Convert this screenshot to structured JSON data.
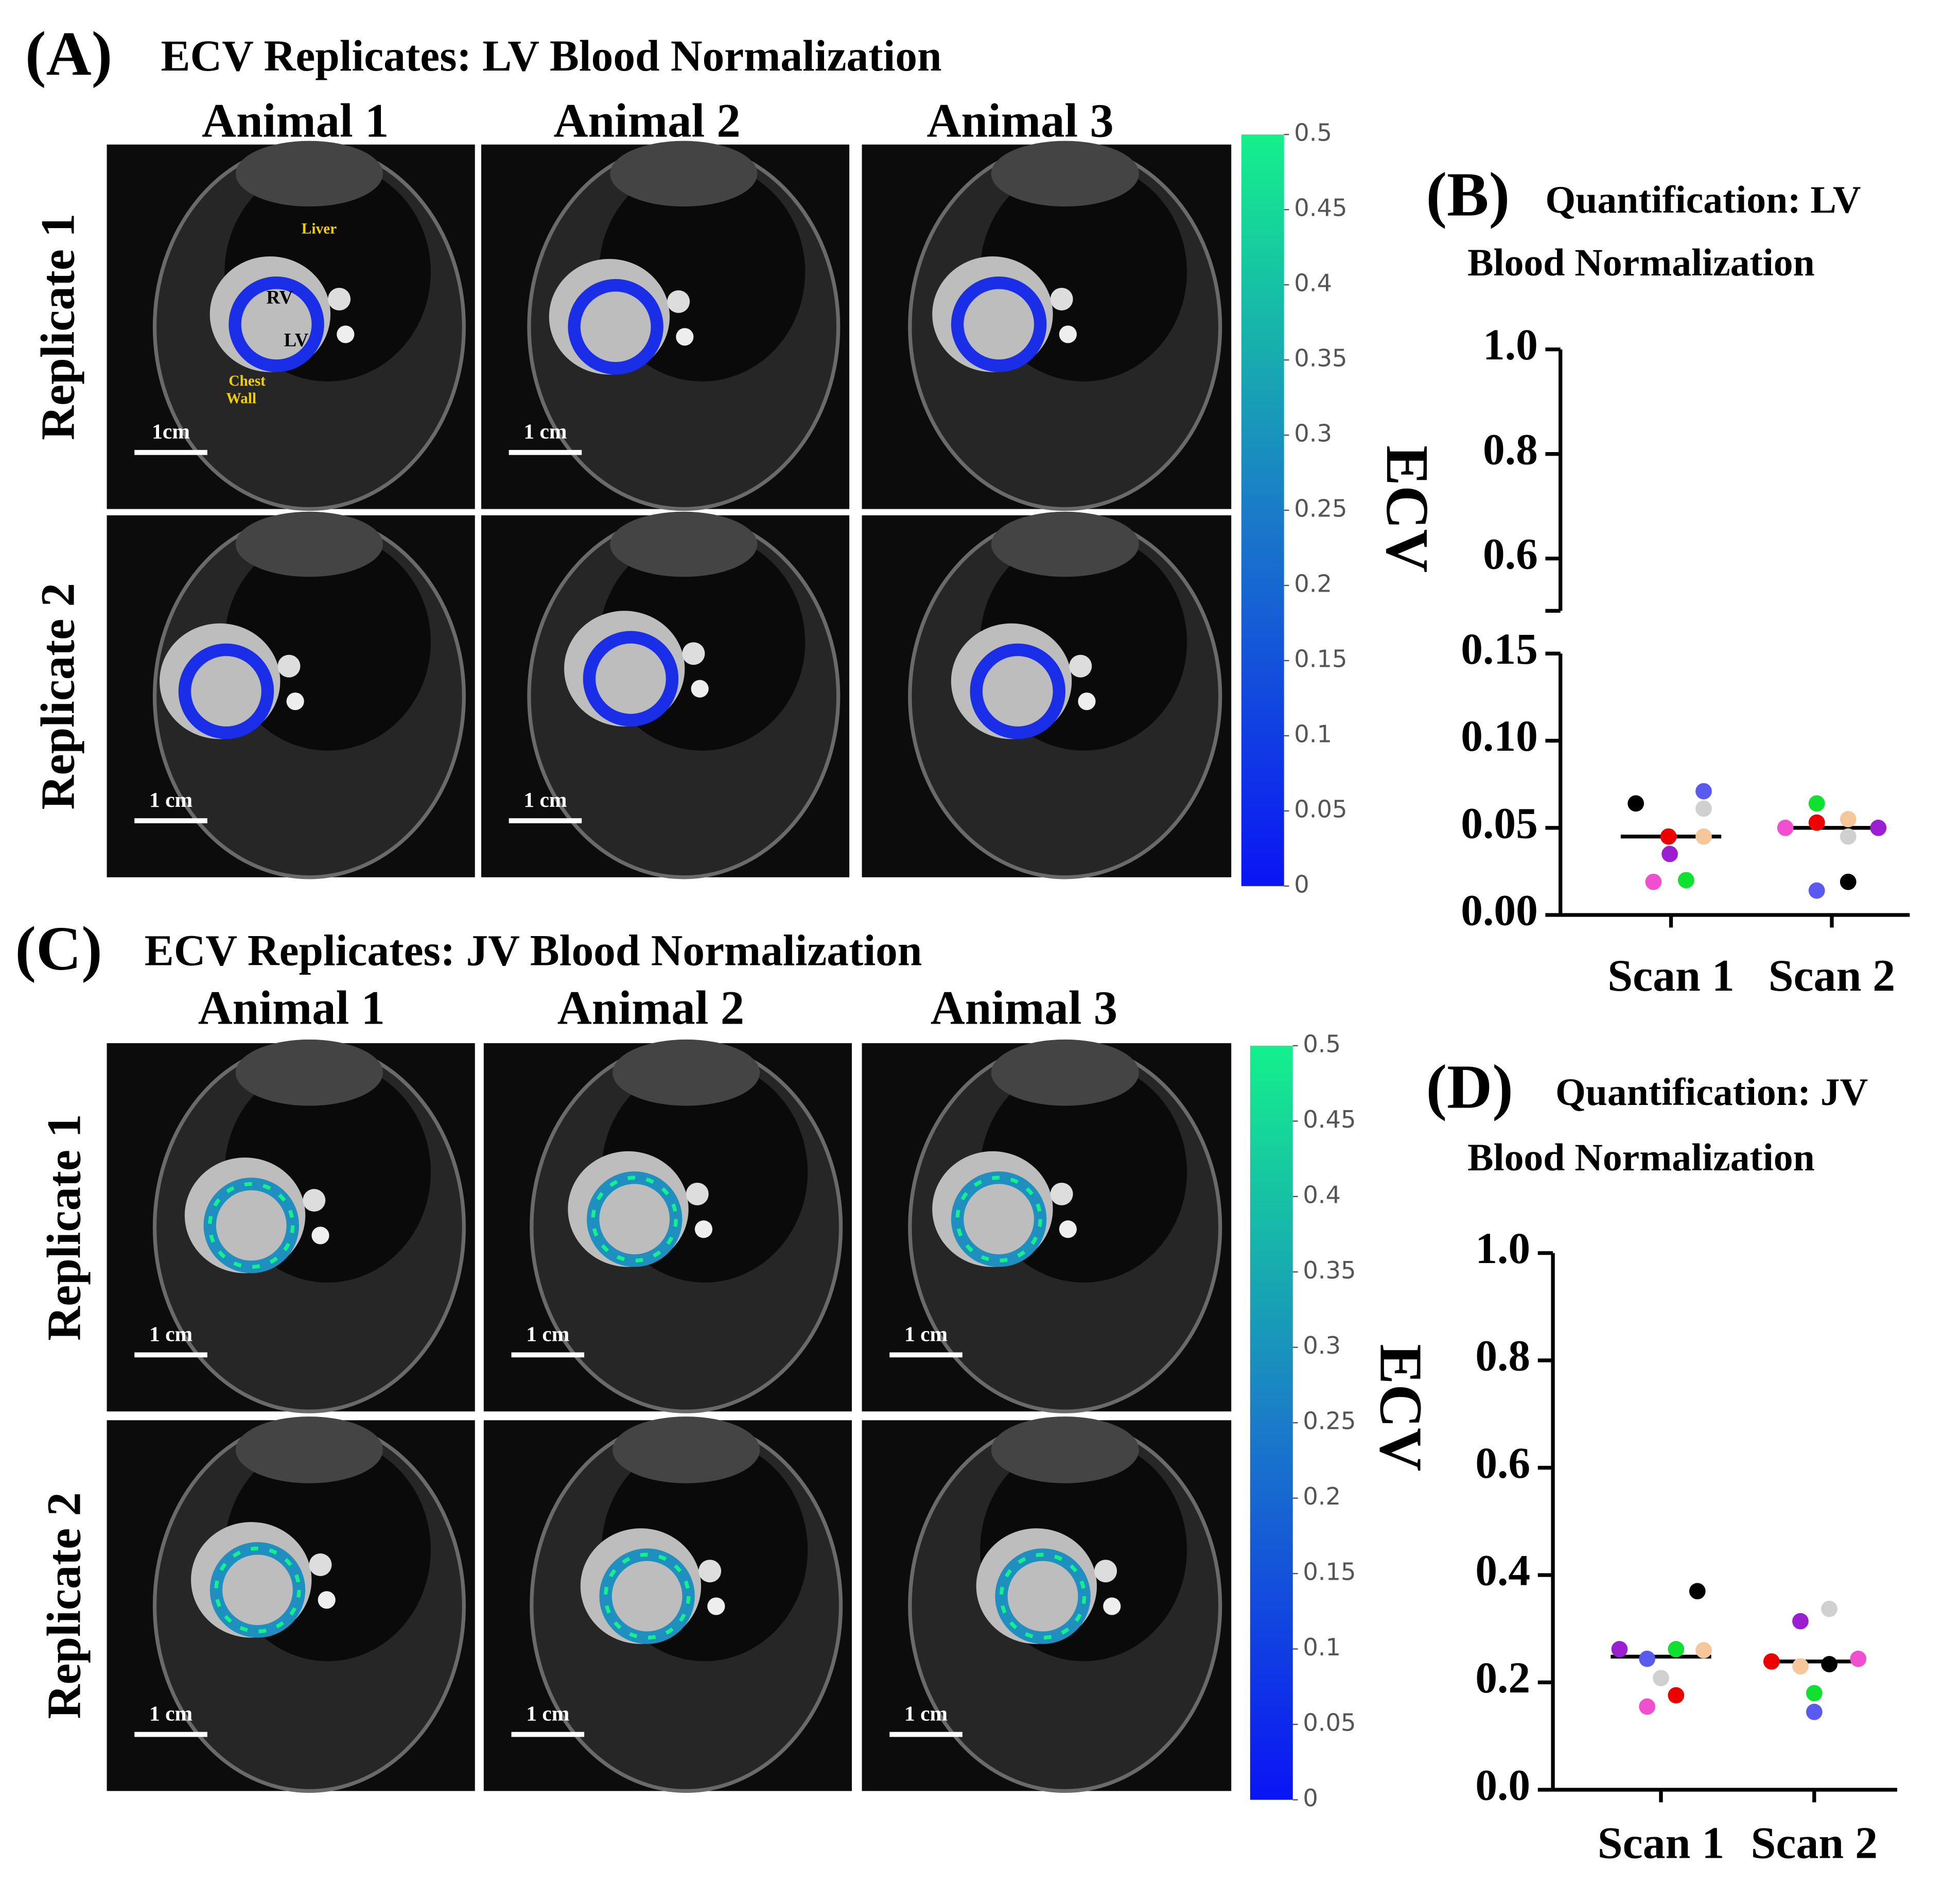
{
  "panel_a": {
    "label": "(A)",
    "title": "ECV Replicates: LV Blood Normalization",
    "columns": [
      "Animal 1",
      "Animal 2",
      "Animal 3"
    ],
    "rows": [
      "Replicate 1",
      "Replicate 2"
    ],
    "scale_bars": [
      [
        "1cm",
        "1 cm",
        null
      ],
      [
        "1 cm",
        "1 cm",
        null
      ]
    ],
    "annotations": [
      "Liver",
      "RV",
      "LV",
      "Chest",
      "Wall"
    ],
    "ring_color": "#1a2ee8",
    "colorbar": {
      "ticks": [
        0,
        0.05,
        0.1,
        0.15,
        0.2,
        0.25,
        0.3,
        0.35,
        0.4,
        0.45,
        0.5
      ],
      "colors": [
        "#0a14f5",
        "#1a7cc8",
        "#14f08c"
      ]
    }
  },
  "panel_c": {
    "label": "(C)",
    "title": "ECV Replicates: JV Blood Normalization",
    "columns": [
      "Animal 1",
      "Animal 2",
      "Animal 3"
    ],
    "rows": [
      "Replicate 1",
      "Replicate 2"
    ],
    "scale_bars": [
      [
        "1 cm",
        "1 cm",
        "1 cm"
      ],
      [
        "1 cm",
        "1 cm",
        "1 cm"
      ]
    ],
    "ring_color": "#1f8fc0",
    "colorbar": {
      "ticks": [
        0,
        0.05,
        0.1,
        0.15,
        0.2,
        0.25,
        0.3,
        0.35,
        0.4,
        0.45,
        0.5
      ],
      "colors": [
        "#0a14f5",
        "#1a7cc8",
        "#14f08c"
      ]
    }
  },
  "chart_data": [
    {
      "type": "scatter",
      "label": "(B)",
      "title": [
        "Quantification: LV",
        "Blood Normalization"
      ],
      "y_label": "ECV",
      "categories": [
        "Scan 1",
        "Scan 2"
      ],
      "series": [
        {
          "color": "#000000",
          "values": [
            0.064,
            0.019
          ]
        },
        {
          "color": "#ee0000",
          "values": [
            0.045,
            0.053
          ]
        },
        {
          "color": "#9b1fd0",
          "values": [
            0.035,
            0.05
          ]
        },
        {
          "color": "#f050d0",
          "values": [
            0.019,
            0.05
          ]
        },
        {
          "color": "#10e030",
          "values": [
            0.02,
            0.064
          ]
        },
        {
          "color": "#f5c79a",
          "values": [
            0.045,
            0.055
          ]
        },
        {
          "color": "#d0d0d0",
          "values": [
            0.061,
            0.045
          ]
        },
        {
          "color": "#5a5af0",
          "values": [
            0.071,
            0.014
          ]
        }
      ],
      "means": [
        0.045,
        0.05
      ],
      "y_segments": [
        {
          "ylim": [
            0,
            0.15
          ],
          "yticks": [
            {
              "value": 0,
              "label": "0.00"
            },
            0.05,
            {
              "value": 0.1,
              "label": "0.10"
            },
            0.15
          ]
        },
        {
          "ylim": [
            0.5,
            1
          ],
          "yticks": [
            0.6,
            0.8,
            {
              "value": 1,
              "label": "1.0"
            }
          ]
        }
      ]
    },
    {
      "type": "scatter",
      "label": "(D)",
      "title": [
        "Quantification: JV",
        "Blood Normalization"
      ],
      "y_label": "ECV",
      "categories": [
        "Scan 1",
        "Scan 2"
      ],
      "series": [
        {
          "color": "#000000",
          "values": [
            0.37,
            0.234
          ]
        },
        {
          "color": "#ee0000",
          "values": [
            0.176,
            0.239
          ]
        },
        {
          "color": "#9b1fd0",
          "values": [
            0.262,
            0.314
          ]
        },
        {
          "color": "#f050d0",
          "values": [
            0.155,
            0.244
          ]
        },
        {
          "color": "#10e030",
          "values": [
            0.262,
            0.18
          ]
        },
        {
          "color": "#f5c79a",
          "values": [
            0.26,
            0.23
          ]
        },
        {
          "color": "#d0d0d0",
          "values": [
            0.208,
            0.337
          ]
        },
        {
          "color": "#5a5af0",
          "values": [
            0.244,
            0.145
          ]
        }
      ],
      "means": [
        0.248,
        0.239
      ],
      "y_segments": [
        {
          "ylim": [
            0,
            1
          ],
          "yticks": [
            {
              "value": 0,
              "label": "0.0"
            },
            0.2,
            0.4,
            0.6,
            0.8,
            {
              "value": 1,
              "label": "1.0"
            }
          ]
        }
      ]
    }
  ]
}
